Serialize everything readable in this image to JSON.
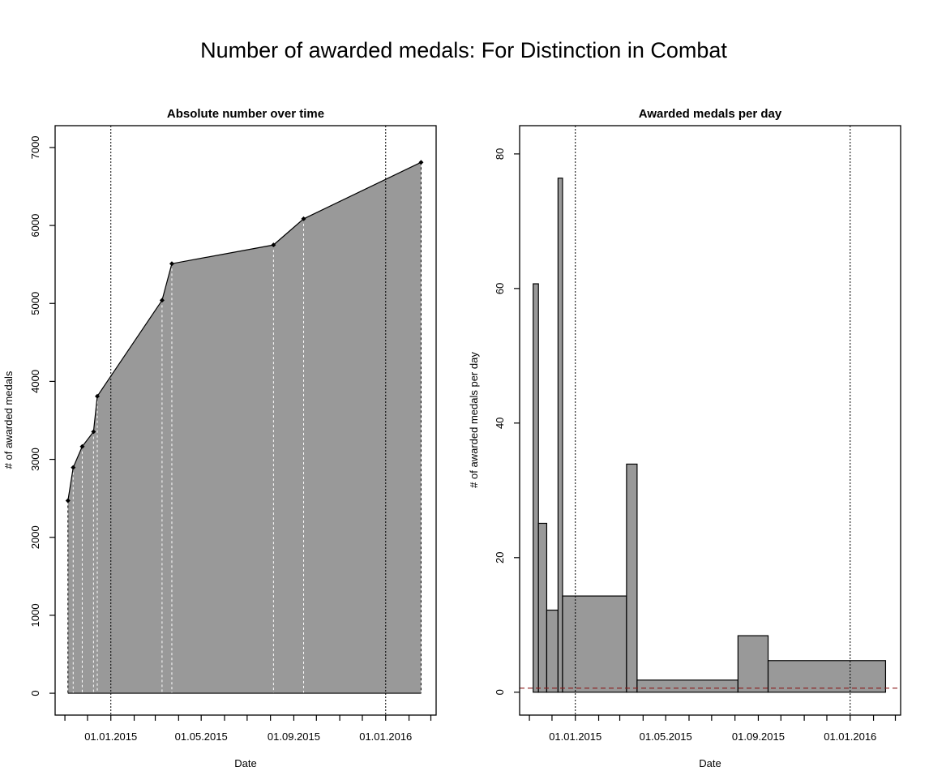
{
  "title": "Number of awarded medals: For Distinction in Combat",
  "chart_data": [
    {
      "type": "area",
      "title": "Absolute number over time",
      "xlabel": "Date",
      "ylabel": "# of awarded medals",
      "x_tick_labels": [
        "01.01.2015",
        "01.05.2015",
        "01.09.2015",
        "01.01.2016"
      ],
      "x_tick_label_dates": [
        "2015-01-01",
        "2015-05-01",
        "2015-09-01",
        "2016-01-01"
      ],
      "x_minor_ticks": "monthly",
      "xlim": [
        "2014-10-19",
        "2016-03-08"
      ],
      "y_ticks": [
        0,
        1000,
        2000,
        3000,
        4000,
        5000,
        6000,
        7000
      ],
      "ylim": [
        -280,
        7280
      ],
      "vlines": [
        "2015-01-01",
        "2016-01-01"
      ],
      "fill_color": "#999999",
      "points": [
        {
          "date": "2014-11-05",
          "value": 2470
        },
        {
          "date": "2014-11-12",
          "value": 2895
        },
        {
          "date": "2014-11-24",
          "value": 3165
        },
        {
          "date": "2014-12-09",
          "value": 3355
        },
        {
          "date": "2014-12-14",
          "value": 3810
        },
        {
          "date": "2015-03-10",
          "value": 5040
        },
        {
          "date": "2015-03-23",
          "value": 5510
        },
        {
          "date": "2015-08-05",
          "value": 5750
        },
        {
          "date": "2015-09-14",
          "value": 6085
        },
        {
          "date": "2016-02-17",
          "value": 6810
        }
      ]
    },
    {
      "type": "bar",
      "title": "Awarded medals per day",
      "xlabel": "Date",
      "ylabel": "# of awarded medals per day",
      "x_tick_labels": [
        "01.01.2015",
        "01.05.2015",
        "01.09.2015",
        "01.01.2016"
      ],
      "x_tick_label_dates": [
        "2015-01-01",
        "2015-05-01",
        "2015-09-01",
        "2016-01-01"
      ],
      "x_minor_ticks": "monthly",
      "xlim": [
        "2014-10-19",
        "2016-03-08"
      ],
      "y_ticks": [
        0,
        20,
        40,
        60,
        80
      ],
      "ylim": [
        -3.4,
        84.2
      ],
      "vlines": [
        "2015-01-01",
        "2016-01-01"
      ],
      "hline": {
        "value": 0.6,
        "color": "#8b1a1a"
      },
      "fill_color": "#999999",
      "bars": [
        {
          "start": "2014-11-06",
          "end": "2014-11-13",
          "value": 60.7
        },
        {
          "start": "2014-11-13",
          "end": "2014-11-24",
          "value": 25.1
        },
        {
          "start": "2014-11-24",
          "end": "2014-12-09",
          "value": 12.2
        },
        {
          "start": "2014-12-09",
          "end": "2014-12-15",
          "value": 76.4
        },
        {
          "start": "2014-12-15",
          "end": "2015-03-10",
          "value": 14.3
        },
        {
          "start": "2015-03-10",
          "end": "2015-03-24",
          "value": 33.9
        },
        {
          "start": "2015-03-24",
          "end": "2015-08-05",
          "value": 1.8
        },
        {
          "start": "2015-08-05",
          "end": "2015-09-14",
          "value": 8.4
        },
        {
          "start": "2015-09-14",
          "end": "2016-02-17",
          "value": 4.7
        }
      ]
    }
  ]
}
